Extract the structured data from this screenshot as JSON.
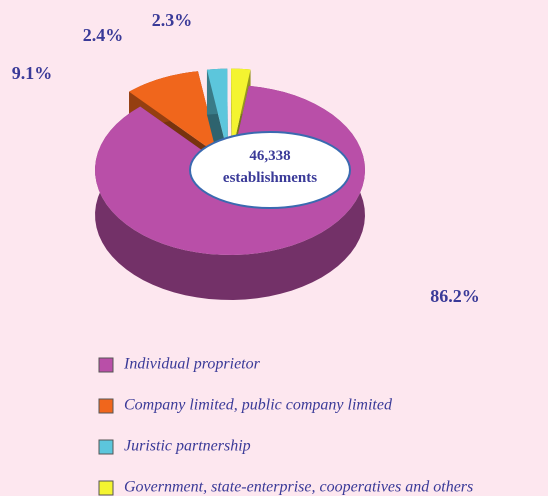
{
  "chart_data": {
    "type": "pie",
    "categories": [
      "Individual proprietor",
      "Company limited, public company limited",
      "Juristic partnership",
      "Government, state-enterprise, cooperatives and others"
    ],
    "values": [
      86.2,
      9.1,
      2.4,
      2.3
    ],
    "value_labels": [
      "86.2%",
      "9.1%",
      "2.4%",
      "2.3%"
    ],
    "colors": [
      "#b94fa8",
      "#f0661c",
      "#5cc6dc",
      "#f4f430"
    ],
    "center_label": "46,338",
    "center_sublabel": "establishments",
    "legend": "bottom"
  }
}
